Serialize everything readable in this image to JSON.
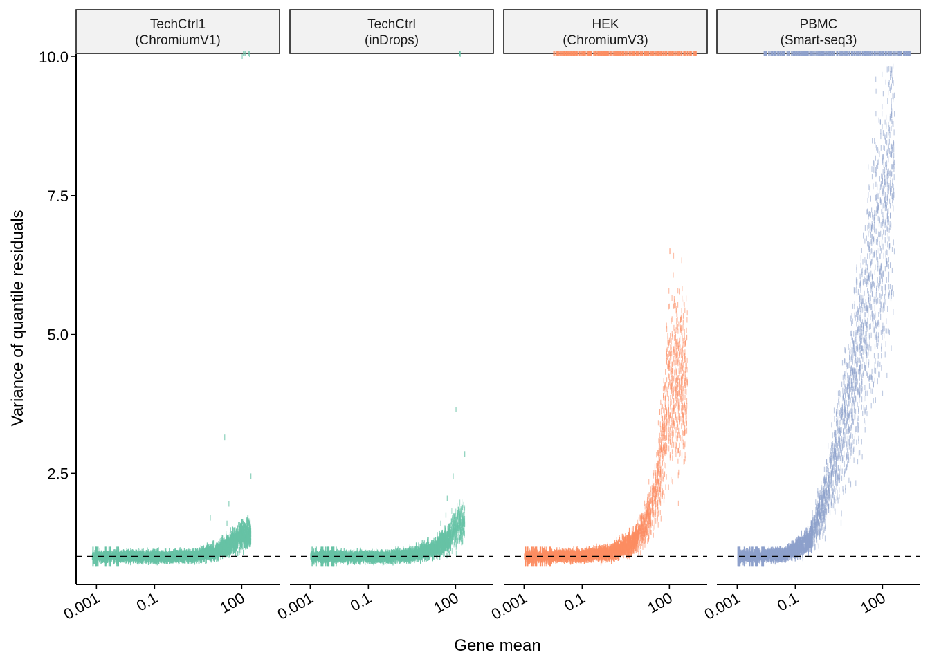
{
  "chart_data": {
    "type": "scatter",
    "xlabel": "Gene mean",
    "ylabel": "Variance of quantile residuals",
    "x_scale": "log10",
    "xlim": [
      0.0002,
      2000
    ],
    "ylim": [
      0.5,
      10.05
    ],
    "x_ticks": [
      {
        "value": 0.001,
        "label": "0.001"
      },
      {
        "value": 0.1,
        "label": "0.1"
      },
      {
        "value": 100,
        "label": "100"
      }
    ],
    "y_ticks": [
      {
        "value": 10.0,
        "label": "10.0"
      },
      {
        "value": 7.5,
        "label": "7.5"
      },
      {
        "value": 5.0,
        "label": "5.0"
      },
      {
        "value": 2.5,
        "label": "2.5"
      }
    ],
    "reference_line": {
      "y": 1.0,
      "style": "dashed",
      "color": "#000000"
    },
    "facets": [
      {
        "name": "TechCtrl1",
        "subtitle": "(ChromiumV1)",
        "color": "#66C2A5",
        "x_range": [
          0.0007,
          200
        ],
        "trend": [
          [
            0.0007,
            1.0
          ],
          [
            0.5,
            1.0
          ],
          [
            3,
            1.02
          ],
          [
            10,
            1.08
          ],
          [
            30,
            1.2
          ],
          [
            100,
            1.4
          ]
        ],
        "outliers": [
          [
            8,
            1.7
          ],
          [
            30,
            1.6
          ],
          [
            35,
            1.95
          ],
          [
            25,
            3.15
          ],
          [
            200,
            2.45
          ],
          [
            100,
            10.0
          ],
          [
            180,
            10.05
          ]
        ],
        "capped_x_range": [
          100,
          200
        ]
      },
      {
        "name": "TechCtrl",
        "subtitle": "(inDrops)",
        "color": "#66C2A5",
        "x_range": [
          0.001,
          200
        ],
        "trend": [
          [
            0.001,
            1.0
          ],
          [
            0.5,
            1.0
          ],
          [
            3,
            1.04
          ],
          [
            20,
            1.15
          ],
          [
            50,
            1.3
          ],
          [
            120,
            1.6
          ]
        ],
        "outliers": [
          [
            100,
            3.65
          ],
          [
            200,
            2.85
          ],
          [
            80,
            2.45
          ],
          [
            50,
            2.05
          ],
          [
            30,
            1.6
          ],
          [
            45,
            1.75
          ],
          [
            140,
            10.05
          ]
        ],
        "capped_x_range": [
          130,
          150
        ]
      },
      {
        "name": "HEK",
        "subtitle": "(ChromiumV3)",
        "color": "#FC8D62",
        "x_range": [
          0.001,
          400
        ],
        "trend": [
          [
            0.001,
            1.0
          ],
          [
            0.1,
            1.02
          ],
          [
            1,
            1.08
          ],
          [
            5,
            1.25
          ],
          [
            15,
            1.6
          ],
          [
            35,
            2.2
          ],
          [
            60,
            3.0
          ],
          [
            90,
            4.2
          ]
        ],
        "outliers": [
          [
            100,
            6.5
          ],
          [
            90,
            5.5
          ],
          [
            150,
            4.8
          ],
          [
            60,
            3.9
          ],
          [
            45,
            3.6
          ],
          [
            130,
            3.2
          ],
          [
            70,
            2.9
          ]
        ],
        "capped_x_range": [
          0.01,
          900
        ]
      },
      {
        "name": "PBMC",
        "subtitle": "(Smart-seq3)",
        "color": "#8DA0CB",
        "x_range": [
          0.001,
          250
        ],
        "trend": [
          [
            0.001,
            1.0
          ],
          [
            0.05,
            1.05
          ],
          [
            0.3,
            1.3
          ],
          [
            1,
            2.0
          ],
          [
            3,
            3.0
          ],
          [
            10,
            4.2
          ],
          [
            30,
            5.5
          ],
          [
            150,
            7.5
          ],
          [
            200,
            9.0
          ]
        ],
        "outliers": [
          [
            220,
            9.65
          ],
          [
            230,
            8.45
          ],
          [
            140,
            7.85
          ],
          [
            180,
            7.55
          ],
          [
            170,
            6.6
          ],
          [
            180,
            6.25
          ],
          [
            120,
            5.85
          ],
          [
            100,
            5.1
          ],
          [
            90,
            4.4
          ]
        ],
        "capped_x_range": [
          0.008,
          900
        ]
      }
    ]
  }
}
